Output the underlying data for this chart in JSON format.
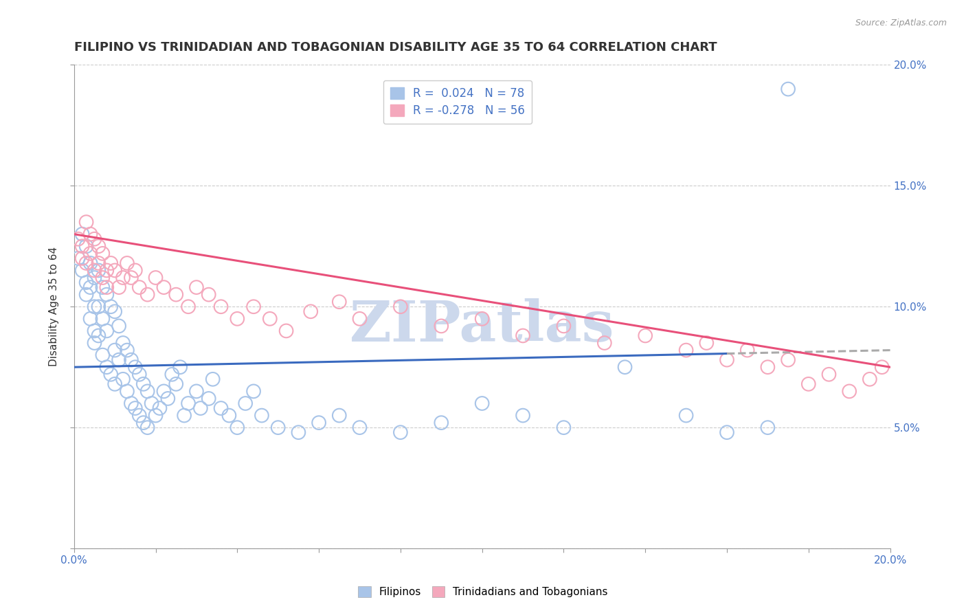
{
  "title": "FILIPINO VS TRINIDADIAN AND TOBAGONIAN DISABILITY AGE 35 TO 64 CORRELATION CHART",
  "source": "Source: ZipAtlas.com",
  "ylabel": "Disability Age 35 to 64",
  "xlim": [
    0.0,
    0.2
  ],
  "ylim": [
    0.0,
    0.2
  ],
  "filipino_R": 0.024,
  "filipino_N": 78,
  "trinidadian_R": -0.278,
  "trinidadian_N": 56,
  "filipino_color": "#a8c4e8",
  "trinidadian_color": "#f4a8bc",
  "filipino_line_color": "#3a6abf",
  "trinidadian_line_color": "#e8507a",
  "background_color": "#ffffff",
  "watermark_color": "#ccd8ec",
  "fil_trend_y0": 0.075,
  "fil_trend_y1": 0.082,
  "tri_trend_y0": 0.13,
  "tri_trend_y1": 0.075,
  "fil_x": [
    0.001,
    0.002,
    0.002,
    0.003,
    0.003,
    0.003,
    0.004,
    0.004,
    0.004,
    0.005,
    0.005,
    0.005,
    0.005,
    0.006,
    0.006,
    0.006,
    0.007,
    0.007,
    0.007,
    0.008,
    0.008,
    0.008,
    0.009,
    0.009,
    0.01,
    0.01,
    0.01,
    0.011,
    0.011,
    0.012,
    0.012,
    0.013,
    0.013,
    0.014,
    0.014,
    0.015,
    0.015,
    0.016,
    0.016,
    0.017,
    0.017,
    0.018,
    0.018,
    0.019,
    0.02,
    0.021,
    0.022,
    0.023,
    0.024,
    0.025,
    0.026,
    0.027,
    0.028,
    0.03,
    0.031,
    0.033,
    0.034,
    0.036,
    0.038,
    0.04,
    0.042,
    0.044,
    0.046,
    0.05,
    0.055,
    0.06,
    0.065,
    0.07,
    0.08,
    0.09,
    0.1,
    0.11,
    0.12,
    0.135,
    0.15,
    0.16,
    0.17,
    0.175
  ],
  "fil_y": [
    0.12,
    0.13,
    0.115,
    0.125,
    0.11,
    0.105,
    0.118,
    0.108,
    0.095,
    0.112,
    0.1,
    0.09,
    0.085,
    0.115,
    0.1,
    0.088,
    0.108,
    0.095,
    0.08,
    0.105,
    0.09,
    0.075,
    0.1,
    0.072,
    0.098,
    0.082,
    0.068,
    0.092,
    0.078,
    0.085,
    0.07,
    0.082,
    0.065,
    0.078,
    0.06,
    0.075,
    0.058,
    0.072,
    0.055,
    0.068,
    0.052,
    0.065,
    0.05,
    0.06,
    0.055,
    0.058,
    0.065,
    0.062,
    0.072,
    0.068,
    0.075,
    0.055,
    0.06,
    0.065,
    0.058,
    0.062,
    0.07,
    0.058,
    0.055,
    0.05,
    0.06,
    0.065,
    0.055,
    0.05,
    0.048,
    0.052,
    0.055,
    0.05,
    0.048,
    0.052,
    0.06,
    0.055,
    0.05,
    0.075,
    0.055,
    0.048,
    0.05,
    0.19
  ],
  "tri_x": [
    0.001,
    0.002,
    0.002,
    0.003,
    0.003,
    0.004,
    0.004,
    0.005,
    0.005,
    0.006,
    0.006,
    0.007,
    0.007,
    0.008,
    0.008,
    0.009,
    0.01,
    0.011,
    0.012,
    0.013,
    0.014,
    0.015,
    0.016,
    0.018,
    0.02,
    0.022,
    0.025,
    0.028,
    0.03,
    0.033,
    0.036,
    0.04,
    0.044,
    0.048,
    0.052,
    0.058,
    0.065,
    0.07,
    0.08,
    0.09,
    0.1,
    0.11,
    0.12,
    0.13,
    0.14,
    0.15,
    0.155,
    0.16,
    0.165,
    0.17,
    0.175,
    0.18,
    0.185,
    0.19,
    0.195,
    0.198
  ],
  "tri_y": [
    0.128,
    0.125,
    0.12,
    0.135,
    0.118,
    0.13,
    0.122,
    0.128,
    0.115,
    0.125,
    0.118,
    0.112,
    0.122,
    0.115,
    0.108,
    0.118,
    0.115,
    0.108,
    0.112,
    0.118,
    0.112,
    0.115,
    0.108,
    0.105,
    0.112,
    0.108,
    0.105,
    0.1,
    0.108,
    0.105,
    0.1,
    0.095,
    0.1,
    0.095,
    0.09,
    0.098,
    0.102,
    0.095,
    0.1,
    0.092,
    0.095,
    0.088,
    0.092,
    0.085,
    0.088,
    0.082,
    0.085,
    0.078,
    0.082,
    0.075,
    0.078,
    0.068,
    0.072,
    0.065,
    0.07,
    0.075
  ]
}
